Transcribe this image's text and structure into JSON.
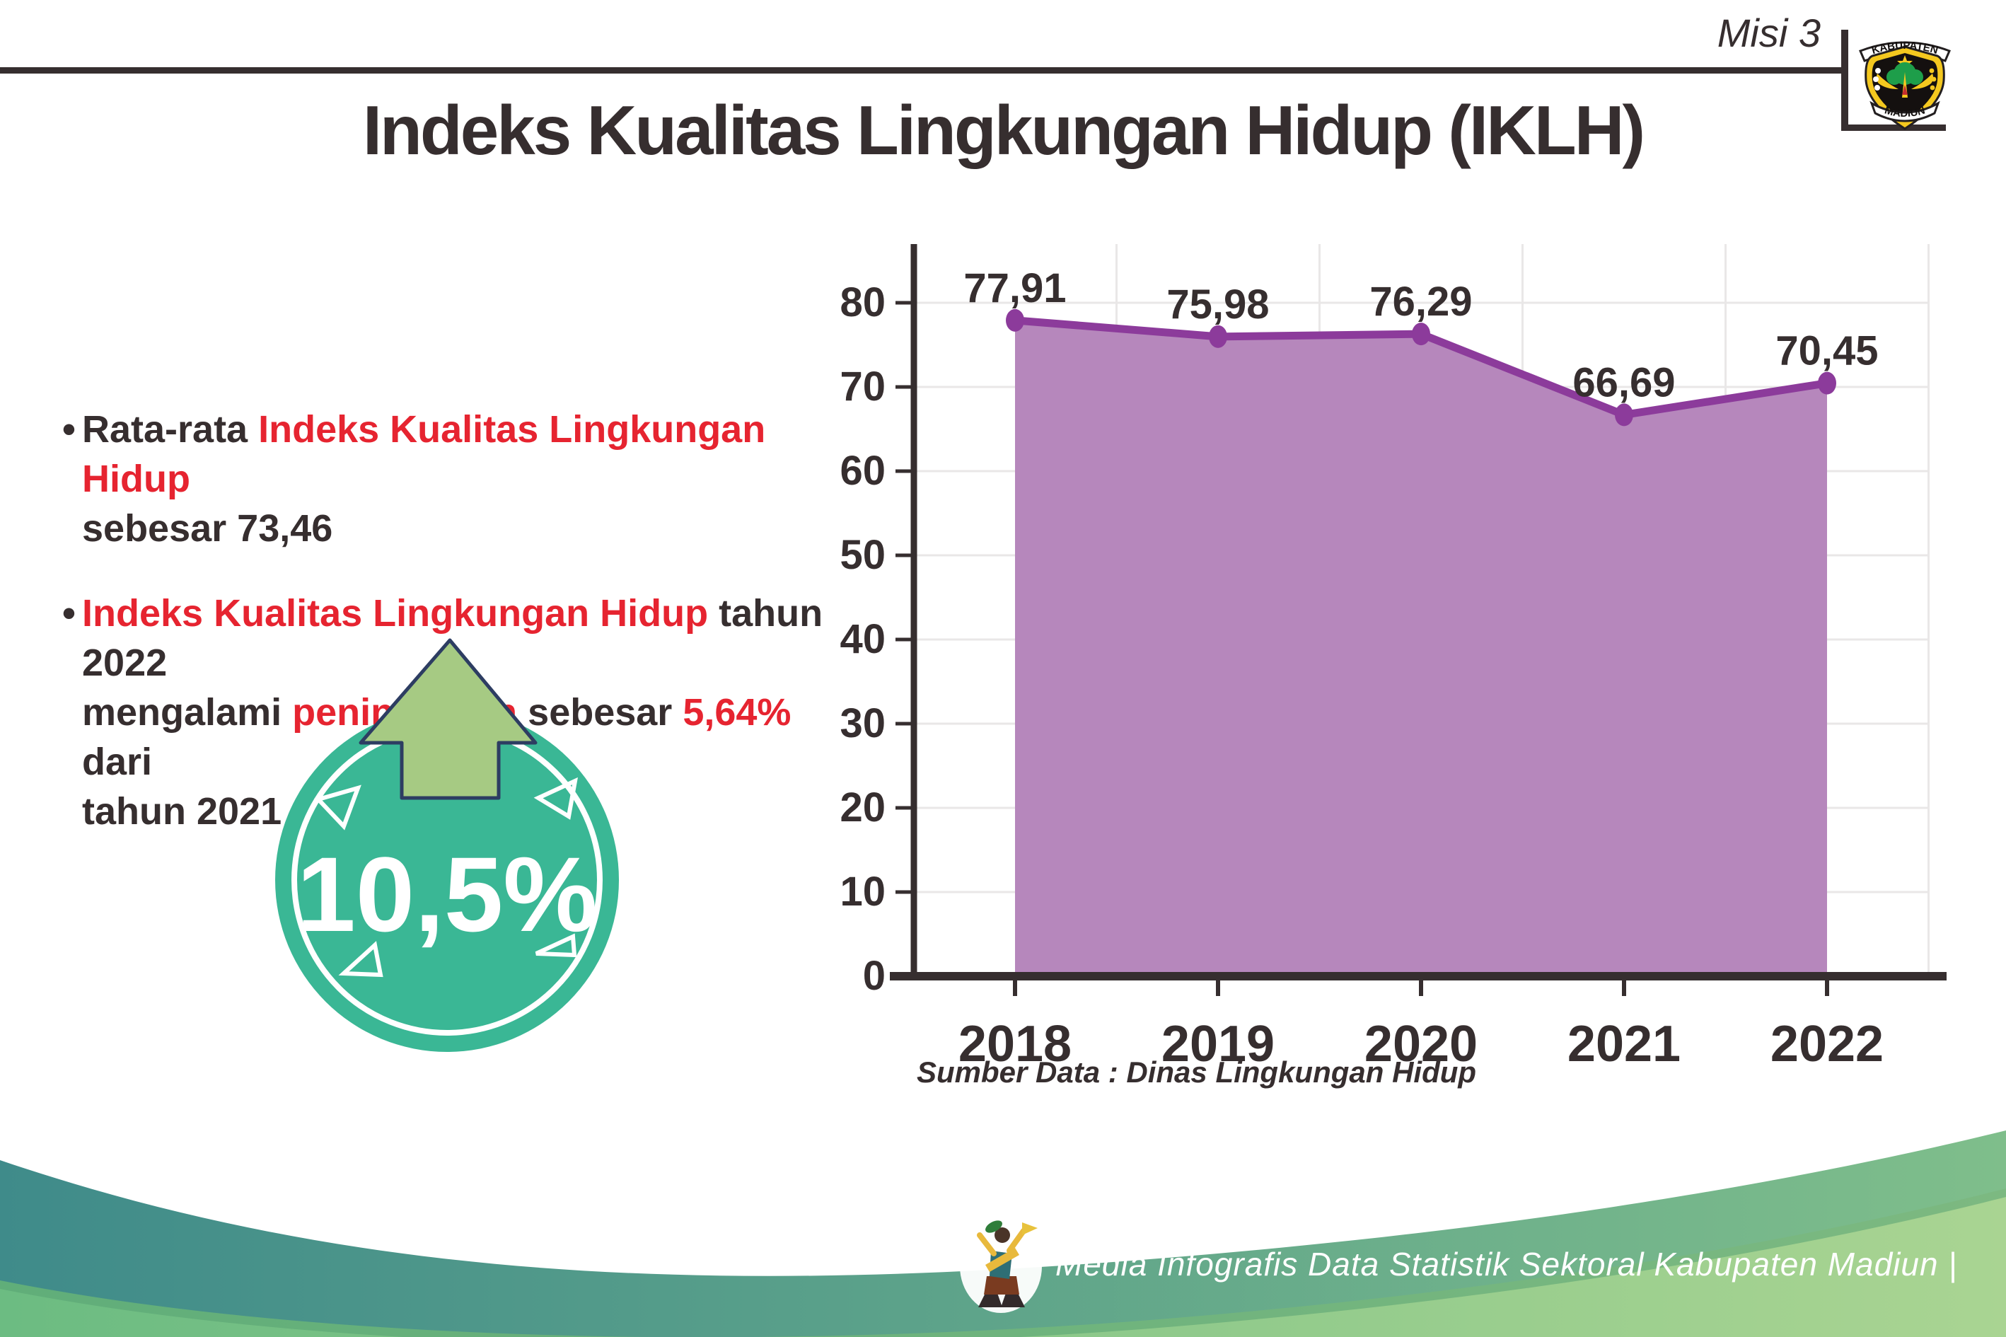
{
  "header": {
    "misi": "Misi 3",
    "title": "Indeks Kualitas Lingkungan Hidup (IKLH)"
  },
  "logo": {
    "top_text": "KABUPATEN",
    "bottom_text": "MADIUN"
  },
  "bullets": [
    {
      "lines": [
        [
          {
            "text": "Rata-rata ",
            "color": "dark"
          },
          {
            "text": "Indeks Kualitas Lingkungan Hidup",
            "color": "red"
          }
        ],
        [
          {
            "text": "sebesar 73,46",
            "color": "dark"
          }
        ]
      ]
    },
    {
      "lines": [
        [
          {
            "text": "Indeks Kualitas Lingkungan Hidup",
            "color": "red"
          },
          {
            "text": " tahun 2022",
            "color": "dark"
          }
        ],
        [
          {
            "text": "mengalami ",
            "color": "dark"
          },
          {
            "text": "peningkatan",
            "color": "red"
          },
          {
            "text": " sebesar ",
            "color": "dark"
          },
          {
            "text": "5,64%",
            "color": "red"
          },
          {
            "text": " dari",
            "color": "dark"
          }
        ],
        [
          {
            "text": "tahun 2021",
            "color": "dark"
          }
        ]
      ]
    }
  ],
  "badge": {
    "value": "10,5%"
  },
  "chart_data": {
    "type": "area",
    "title": "Indeks Kualitas Lingkungan Hidup (IKLH)",
    "categories": [
      "2018",
      "2019",
      "2020",
      "2021",
      "2022"
    ],
    "values": [
      77.91,
      75.98,
      76.29,
      66.69,
      70.45
    ],
    "labels": [
      "77,91",
      "75,98",
      "76,29",
      "66,69",
      "70,45"
    ],
    "ylim": [
      0,
      80
    ],
    "ytick_step": 10,
    "grid": true,
    "legend_position": "none",
    "source": "Sumber Data : Dinas Lingkungan Hidup"
  },
  "footer": {
    "text": "Media Infografis Data Statistik Sektoral Kabupaten Madiun |"
  },
  "colors": {
    "ink": "#362e2f",
    "red": "#e62430",
    "teal_badge": "#3ab795",
    "arrow_green": "#a6ca83",
    "arrow_outline": "#2d3d62",
    "area_fill": "#b687bc",
    "line_purple": "#8c3b9b",
    "grid": "#e9e7e7",
    "wave_teal_start": "#3f8b8a",
    "wave_teal_end": "#7fbe8b",
    "wave_green_start": "#6cbc82",
    "wave_green_end": "#a9d492",
    "wave_shadow": "#58a273",
    "logo_yellow": "#f4c81f",
    "logo_green": "#1e9e4a"
  }
}
